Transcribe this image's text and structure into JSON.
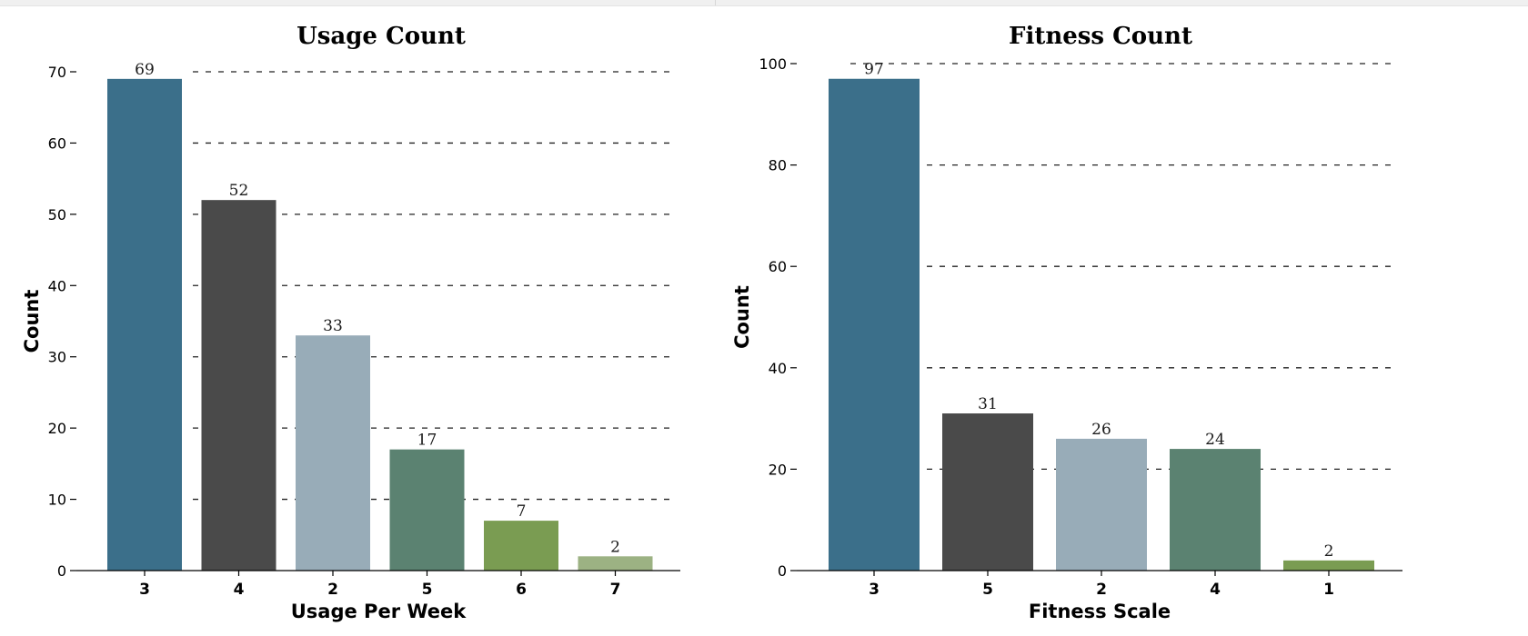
{
  "chart_data": [
    {
      "type": "bar",
      "title": "Usage Count",
      "xlabel": "Usage Per Week",
      "ylabel": "Count",
      "categories": [
        "3",
        "4",
        "2",
        "5",
        "6",
        "7"
      ],
      "values": [
        69,
        52,
        33,
        17,
        7,
        2
      ],
      "data_labels": [
        "69",
        "52",
        "33",
        "17",
        "7",
        "2"
      ],
      "ylim": [
        0,
        70
      ],
      "yticks": [
        0,
        10,
        20,
        30,
        40,
        50,
        60,
        70
      ],
      "grid": "y-dashed",
      "colors": [
        "#3b6f8a",
        "#4a4a4a",
        "#98acb8",
        "#5b8271",
        "#7a9c52",
        "#9cb283"
      ]
    },
    {
      "type": "bar",
      "title": "Fitness Count",
      "xlabel": "Fitness Scale",
      "ylabel": "Count",
      "categories": [
        "3",
        "5",
        "2",
        "4",
        "1"
      ],
      "values": [
        97,
        31,
        26,
        24,
        2
      ],
      "data_labels": [
        "97",
        "31",
        "26",
        "24",
        "2"
      ],
      "ylim": [
        0,
        100
      ],
      "yticks": [
        0,
        20,
        40,
        60,
        80,
        100
      ],
      "grid": "y-dashed",
      "colors": [
        "#3b6f8a",
        "#4a4a4a",
        "#98acb8",
        "#5b8271",
        "#7a9c52"
      ]
    }
  ]
}
